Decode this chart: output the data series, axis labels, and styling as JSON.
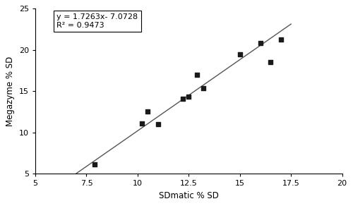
{
  "x_data": [
    7.9,
    10.2,
    10.5,
    11.0,
    12.2,
    12.5,
    12.9,
    13.2,
    15.0,
    16.0,
    16.5,
    17.0
  ],
  "y_data": [
    6.1,
    11.1,
    12.5,
    11.0,
    14.1,
    14.3,
    17.0,
    15.4,
    19.5,
    20.8,
    18.5,
    21.3
  ],
  "slope": 1.7263,
  "intercept": -7.0728,
  "x_line_start": 7.0,
  "x_line_end": 17.5,
  "xlim": [
    5,
    20
  ],
  "ylim": [
    5,
    25
  ],
  "xticks": [
    5,
    7.5,
    10,
    12.5,
    15,
    17.5,
    20
  ],
  "yticks": [
    5,
    10,
    15,
    20,
    25
  ],
  "xlabel": "SDmatic % SD",
  "ylabel": "Megazyme % SD",
  "equation_text": "y = 1.7263x- 7.0728",
  "r2_text": "R² = 0.9473",
  "marker_color": "#1a1a1a",
  "line_color": "#555555",
  "marker_size": 5,
  "background_color": "#ffffff"
}
